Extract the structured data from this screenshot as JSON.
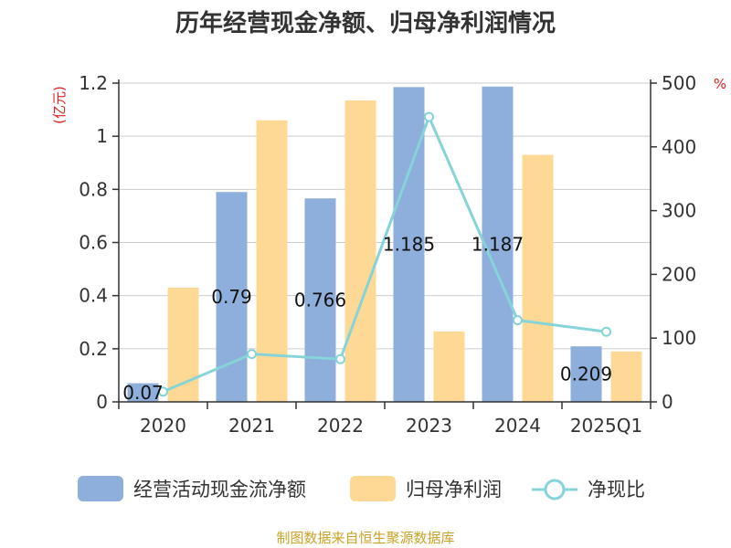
{
  "title": "历年经营现金净额、归母净利润情况",
  "source": "制图数据来自恒生聚源数据库",
  "chart_data": {
    "type": "bar",
    "categories": [
      "2020",
      "2021",
      "2022",
      "2023",
      "2024",
      "2025Q1"
    ],
    "left_axis": {
      "unit": "(亿元)",
      "ylim": [
        0,
        1.2
      ],
      "ticks": [
        "0",
        "0.2",
        "0.4",
        "0.6",
        "0.8",
        "1",
        "1.2"
      ]
    },
    "right_axis": {
      "unit": "%",
      "ylim": [
        0,
        500
      ],
      "ticks": [
        "0",
        "100",
        "200",
        "300",
        "400",
        "500"
      ]
    },
    "grid": true,
    "legend_position": "bottom",
    "series": [
      {
        "name": "经营活动现金流净额",
        "type": "bar",
        "axis": "left",
        "color": "#8eaedb",
        "values": [
          0.07,
          0.79,
          0.766,
          1.185,
          1.187,
          0.209
        ],
        "labels": [
          "0.07",
          "0.79",
          "0.766",
          "1.185",
          "1.187",
          "0.209"
        ]
      },
      {
        "name": "归母净利润",
        "type": "bar",
        "axis": "left",
        "color": "#fdd995",
        "values": [
          0.43,
          1.06,
          1.135,
          0.265,
          0.93,
          0.19
        ]
      },
      {
        "name": "净现比",
        "type": "line",
        "axis": "right",
        "color": "#86d3d8",
        "values": [
          16,
          75,
          67,
          447,
          128,
          110
        ]
      }
    ]
  }
}
